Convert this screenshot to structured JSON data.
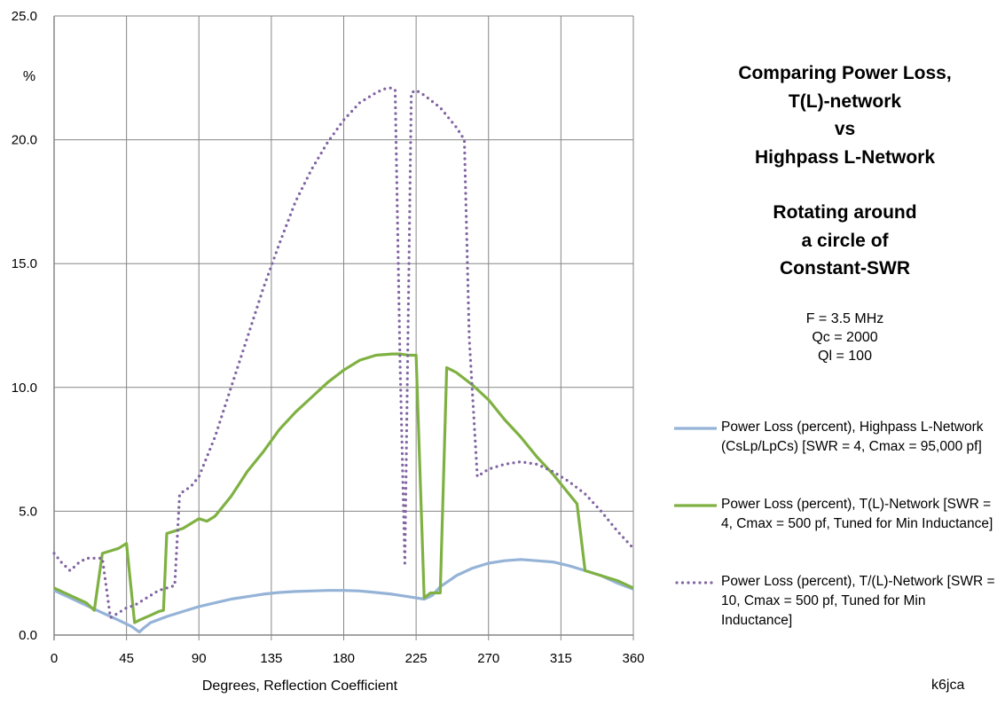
{
  "chart_data": {
    "type": "line",
    "title": "Comparing Power Loss, T(L)-network vs Highpass L-Network",
    "xlabel": "Degrees, Reflection Coefficient",
    "ylabel": "%",
    "xlim": [
      0,
      360
    ],
    "ylim": [
      0,
      25
    ],
    "xticks": [
      0,
      45,
      90,
      135,
      180,
      225,
      270,
      315,
      360
    ],
    "yticks": [
      0,
      5,
      10,
      15,
      20,
      25
    ],
    "x_tick_labels": [
      "0",
      "45",
      "90",
      "135",
      "180",
      "225",
      "270",
      "315",
      "360"
    ],
    "y_tick_labels": [
      "0.0",
      "5.0",
      "10.0",
      "15.0",
      "20.0",
      "25.0"
    ],
    "grid": true,
    "legend_position": "right",
    "series": [
      {
        "name": "Power Loss (percent), Highpass L-Network (CsLp/LpCs)  [SWR = 4, Cmax = 95,000 pf]",
        "color": "#95b3d7",
        "style": "solid",
        "x": [
          0,
          10,
          20,
          30,
          40,
          48,
          53,
          56,
          60,
          70,
          80,
          90,
          100,
          110,
          120,
          130,
          140,
          150,
          160,
          170,
          180,
          190,
          200,
          210,
          220,
          230,
          235,
          240,
          250,
          260,
          270,
          280,
          290,
          300,
          310,
          320,
          330,
          340,
          350,
          360
        ],
        "y": [
          1.8,
          1.5,
          1.2,
          0.9,
          0.6,
          0.35,
          0.12,
          0.3,
          0.5,
          0.75,
          0.95,
          1.15,
          1.3,
          1.45,
          1.55,
          1.65,
          1.72,
          1.76,
          1.78,
          1.8,
          1.8,
          1.78,
          1.72,
          1.65,
          1.55,
          1.45,
          1.6,
          1.95,
          2.4,
          2.7,
          2.9,
          3.0,
          3.05,
          3.0,
          2.95,
          2.8,
          2.6,
          2.4,
          2.1,
          1.85
        ]
      },
      {
        "name": "Power Loss (percent), T(L)-Network [SWR = 4, Cmax = 500 pf, Tuned for Min Inductance]",
        "color": "#7fb142",
        "style": "solid",
        "x": [
          0,
          10,
          20,
          25,
          30,
          35,
          40,
          45,
          50,
          53,
          60,
          65,
          68,
          70,
          75,
          80,
          90,
          95,
          100,
          105,
          110,
          115,
          120,
          130,
          140,
          150,
          160,
          170,
          180,
          190,
          200,
          210,
          215,
          220,
          225,
          230,
          234,
          240,
          244,
          250,
          260,
          270,
          280,
          290,
          300,
          310,
          320,
          325,
          330,
          340,
          350,
          360
        ],
        "y": [
          1.9,
          1.6,
          1.3,
          1.0,
          3.3,
          3.4,
          3.5,
          3.7,
          0.5,
          0.6,
          0.8,
          0.95,
          1.0,
          4.1,
          4.2,
          4.3,
          4.7,
          4.6,
          4.8,
          5.2,
          5.6,
          6.1,
          6.6,
          7.4,
          8.3,
          9.0,
          9.6,
          10.2,
          10.7,
          11.1,
          11.3,
          11.35,
          11.35,
          11.3,
          11.3,
          1.5,
          1.7,
          1.7,
          10.8,
          10.6,
          10.1,
          9.5,
          8.7,
          8.0,
          7.2,
          6.5,
          5.7,
          5.3,
          2.6,
          2.4,
          2.2,
          1.9
        ]
      },
      {
        "name": "Power Loss (percent), T/(L)-Network [SWR = 10, Cmax = 500 pf, Tuned for Min Inductance]",
        "color": "#8064a2",
        "style": "dotted",
        "x": [
          0,
          5,
          10,
          15,
          20,
          25,
          30,
          35,
          40,
          45,
          50,
          55,
          60,
          65,
          70,
          75,
          78,
          85,
          90,
          100,
          110,
          120,
          130,
          140,
          150,
          160,
          170,
          180,
          190,
          200,
          205,
          210,
          212,
          215,
          218,
          222,
          225,
          230,
          240,
          250,
          255,
          258,
          263,
          270,
          280,
          290,
          300,
          310,
          320,
          330,
          340,
          350,
          360
        ],
        "y": [
          3.3,
          2.9,
          2.6,
          2.9,
          3.1,
          3.1,
          3.1,
          0.7,
          0.9,
          1.1,
          1.2,
          1.4,
          1.6,
          1.8,
          1.9,
          2.0,
          5.7,
          6.0,
          6.4,
          8.0,
          10.0,
          12.0,
          14.0,
          15.8,
          17.5,
          18.8,
          19.9,
          20.8,
          21.5,
          21.9,
          22.05,
          22.1,
          22.0,
          11.0,
          2.9,
          21.9,
          22.0,
          21.8,
          21.3,
          20.5,
          20.0,
          12.0,
          6.4,
          6.7,
          6.9,
          7.0,
          6.9,
          6.6,
          6.2,
          5.7,
          5.0,
          4.2,
          3.5
        ]
      }
    ]
  },
  "side_title_lines": [
    "Comparing Power Loss,",
    "T(L)-network",
    "vs",
    "Highpass L-Network",
    "",
    "Rotating around",
    "a circle of",
    "Constant-SWR"
  ],
  "params": [
    "F = 3.5 MHz",
    "Qc = 2000",
    "Ql = 100"
  ],
  "legend": [
    "Power Loss (percent), Highpass L-Network (CsLp/LpCs)  [SWR = 4, Cmax = 95,000 pf]",
    "Power Loss (percent), T(L)-Network [SWR = 4, Cmax = 500 pf, Tuned for Min Inductance]",
    "Power Loss (percent), T/(L)-Network [SWR = 10, Cmax = 500 pf, Tuned for Min Inductance]"
  ],
  "credit": "k6jca"
}
